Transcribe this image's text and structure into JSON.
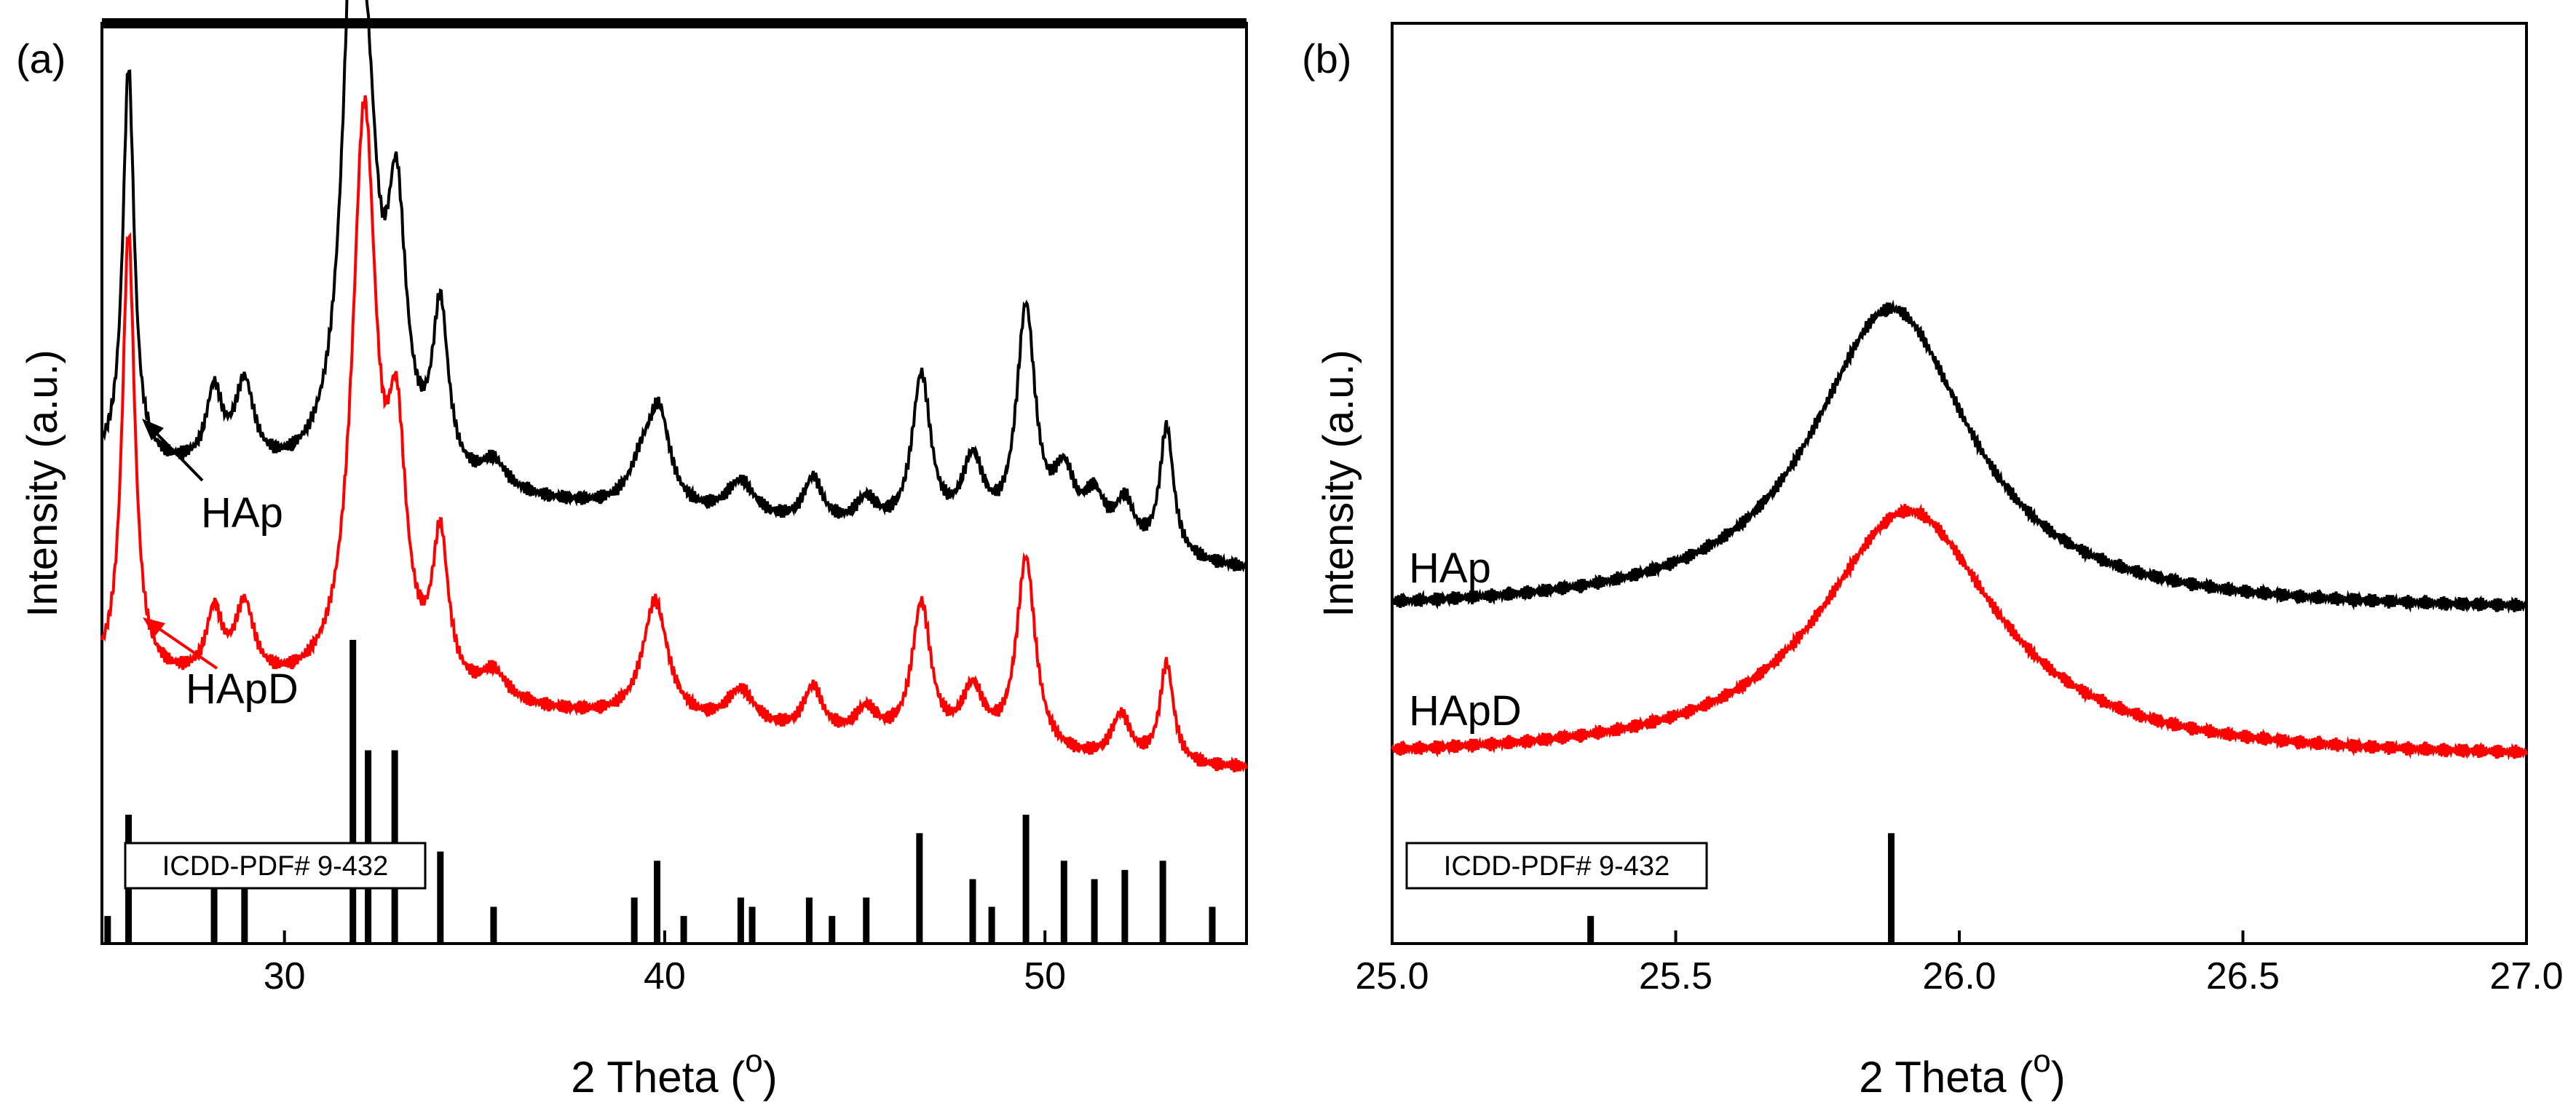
{
  "chart_data": [
    {
      "id": "a",
      "type": "line",
      "panel_label": "(a)",
      "xlabel": "2 Theta (",
      "xlabel_sup": "o",
      "xlabel_close": ")",
      "ylabel": "Intensity (a.u.)",
      "xlim": [
        25.2,
        55.3
      ],
      "ylim": [
        0,
        100
      ],
      "xticks": [
        30,
        40,
        50
      ],
      "xtick_labels": [
        "30",
        "40",
        "50"
      ],
      "annotations": {
        "hap_label": "HAp",
        "hapd_label": "HApD",
        "reference_label": "ICDD-PDF# 9-432"
      },
      "series": [
        {
          "name": "HAp",
          "color": "#000000",
          "baseline": 40,
          "start_level": 52,
          "slope": -0.38,
          "peaks": [
            [
              25.9,
              43,
              0.18
            ],
            [
              28.15,
              8,
              0.25
            ],
            [
              28.95,
              9,
              0.3
            ],
            [
              31.85,
              65,
              0.35
            ],
            [
              32.25,
              15,
              0.3
            ],
            [
              32.95,
              27,
              0.3
            ],
            [
              34.1,
              18,
              0.25
            ],
            [
              35.5,
              3,
              0.4
            ],
            [
              39.4,
              4,
              0.4
            ],
            [
              39.85,
              10,
              0.35
            ],
            [
              42.0,
              4,
              0.45
            ],
            [
              43.9,
              5,
              0.3
            ],
            [
              45.3,
              3,
              0.35
            ],
            [
              46.75,
              17,
              0.3
            ],
            [
              48.1,
              8,
              0.35
            ],
            [
              49.5,
              25,
              0.3
            ],
            [
              50.5,
              7,
              0.35
            ],
            [
              51.3,
              5,
              0.35
            ],
            [
              52.1,
              5,
              0.3
            ],
            [
              53.2,
              14,
              0.22
            ]
          ]
        },
        {
          "name": "HApD",
          "color": "#ff0000",
          "baseline": 19,
          "start_level": 29,
          "slope": -0.36,
          "peaks": [
            [
              25.9,
              48,
              0.2
            ],
            [
              28.15,
              7,
              0.25
            ],
            [
              28.95,
              8,
              0.3
            ],
            [
              32.1,
              62,
              0.38
            ],
            [
              32.95,
              24,
              0.3
            ],
            [
              34.1,
              16,
              0.25
            ],
            [
              35.5,
              3,
              0.4
            ],
            [
              39.75,
              13,
              0.4
            ],
            [
              42.0,
              4,
              0.45
            ],
            [
              43.9,
              5,
              0.3
            ],
            [
              45.3,
              3,
              0.35
            ],
            [
              46.75,
              15,
              0.3
            ],
            [
              48.1,
              6,
              0.35
            ],
            [
              49.5,
              21,
              0.3
            ],
            [
              52.0,
              5,
              0.3
            ],
            [
              53.2,
              11,
              0.22
            ]
          ]
        }
      ],
      "reference_sticks": {
        "name": "ICDD-PDF# 9-432",
        "positions": [
          25.35,
          25.9,
          28.15,
          28.95,
          31.8,
          32.2,
          32.9,
          34.1,
          35.5,
          39.2,
          39.8,
          40.5,
          42.0,
          42.3,
          43.8,
          44.4,
          45.3,
          46.7,
          48.1,
          48.6,
          49.5,
          50.5,
          51.3,
          52.1,
          53.1,
          54.4
        ],
        "heights": [
          3,
          14,
          6,
          8,
          33,
          21,
          21,
          10,
          4,
          5,
          9,
          3,
          5,
          4,
          5,
          3,
          5,
          12,
          7,
          4,
          14,
          9,
          7,
          8,
          9,
          4
        ]
      }
    },
    {
      "id": "b",
      "type": "line",
      "panel_label": "(b)",
      "xlabel": "2 Theta (",
      "xlabel_sup": "o",
      "xlabel_close": ")",
      "ylabel": "Intensity (a.u.)",
      "xlim": [
        25.0,
        27.0
      ],
      "ylim": [
        0,
        100
      ],
      "xticks": [
        25.0,
        25.5,
        26.0,
        26.5,
        27.0
      ],
      "xtick_labels": [
        "25.0",
        "25.5",
        "26.0",
        "26.5",
        "27.0"
      ],
      "annotations": {
        "hap_label": "HAp",
        "hapd_label": "HApD",
        "reference_label": "ICDD-PDF# 9-432"
      },
      "series": [
        {
          "name": "HAp",
          "color": "#000000",
          "baseline": 36,
          "start_level": 36,
          "slope": -2.6,
          "peaks": [
            [
              25.88,
              33,
              0.17
            ]
          ]
        },
        {
          "name": "HApD",
          "color": "#ff0000",
          "baseline": 20,
          "start_level": 20,
          "slope": -2.5,
          "peaks": [
            [
              25.91,
              27,
              0.19
            ]
          ]
        }
      ],
      "reference_sticks": {
        "name": "ICDD-PDF# 9-432",
        "positions": [
          25.35,
          25.88
        ],
        "heights": [
          3,
          12
        ]
      }
    }
  ]
}
